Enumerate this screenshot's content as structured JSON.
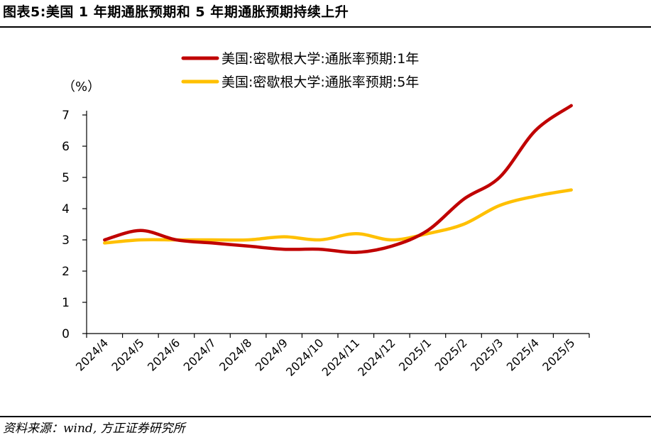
{
  "figure": {
    "title": "图表5:美国 1 年期通胀预期和 5 年期通胀预期持续上升",
    "source": "资料来源：wind, 方正证券研究所"
  },
  "chart_data": {
    "type": "line",
    "unit_label": "（%）",
    "x": [
      "2024/4",
      "2024/5",
      "2024/6",
      "2024/7",
      "2024/8",
      "2024/9",
      "2024/10",
      "2024/11",
      "2024/12",
      "2025/1",
      "2025/2",
      "2025/3",
      "2025/4",
      "2025/5"
    ],
    "ylim": [
      0,
      7
    ],
    "yticks": [
      "0",
      "1",
      "2",
      "3",
      "4",
      "5",
      "6",
      "7"
    ],
    "grid": false,
    "legend": "top",
    "series": [
      {
        "name": "美国:密歇根大学:通胀率预期:1年",
        "color": "#C00000",
        "values": [
          3.0,
          3.3,
          3.0,
          2.9,
          2.8,
          2.7,
          2.7,
          2.6,
          2.8,
          3.3,
          4.3,
          5.0,
          6.5,
          7.3
        ]
      },
      {
        "name": "美国:密歇根大学:通胀率预期:5年",
        "color": "#FFC000",
        "values": [
          2.9,
          3.0,
          3.0,
          3.0,
          3.0,
          3.1,
          3.0,
          3.2,
          3.0,
          3.2,
          3.5,
          4.1,
          4.4,
          4.6
        ]
      }
    ]
  }
}
